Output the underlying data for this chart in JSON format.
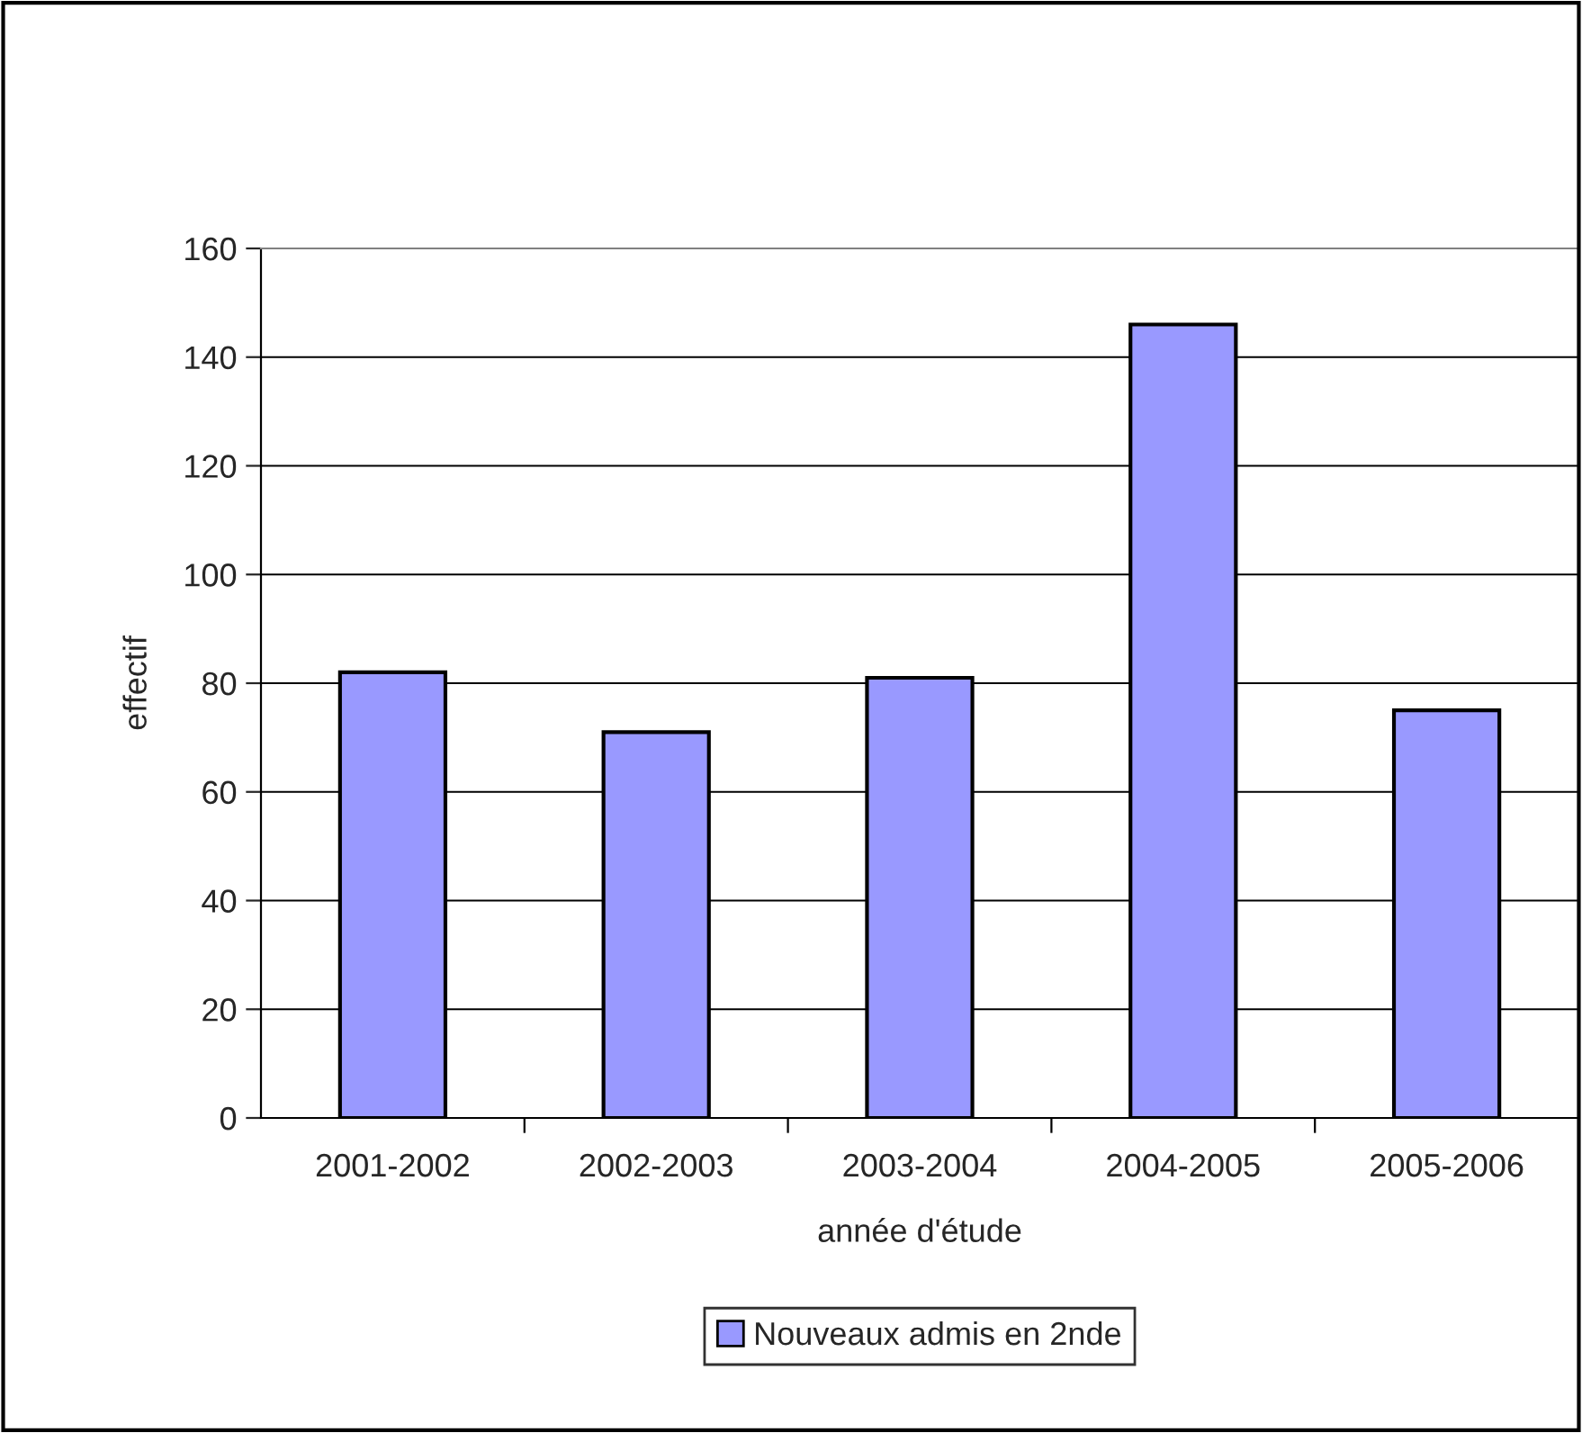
{
  "chart_data": {
    "type": "bar",
    "xlabel": "année d'étude",
    "ylabel": "effectif",
    "categories": [
      "2001-2002",
      "2002-2003",
      "2003-2004",
      "2004-2005",
      "2005-2006"
    ],
    "series": [
      {
        "name": "Nouveaux admis en 2nde",
        "color": "#9999ff",
        "values": [
          82,
          71,
          81,
          146,
          75
        ]
      }
    ],
    "ylim": [
      0,
      160
    ],
    "yticks": [
      0,
      20,
      40,
      60,
      80,
      100,
      120,
      140,
      160
    ],
    "grid": "y",
    "legend": "bottom"
  }
}
